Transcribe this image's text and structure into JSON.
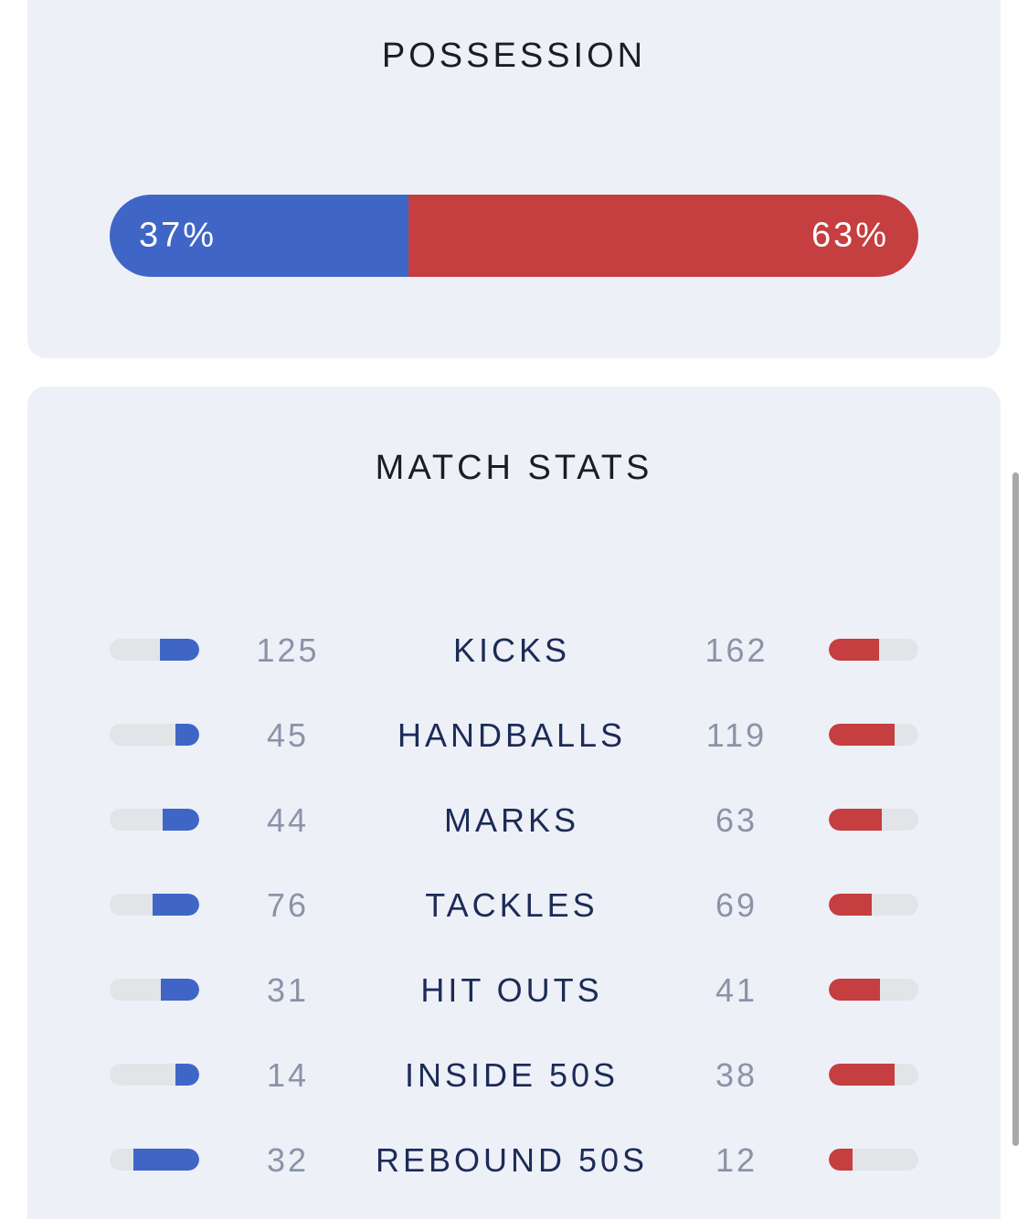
{
  "possession": {
    "title": "POSSESSION",
    "home_label": "37%",
    "away_label": "63%",
    "home_fraction": 0.37,
    "away_fraction": 0.63
  },
  "match_stats": {
    "title": "MATCH STATS",
    "rows": [
      {
        "name": "KICKS",
        "home": "125",
        "away": "162",
        "home_fill": 0.44,
        "away_fill": 0.56
      },
      {
        "name": "HANDBALLS",
        "home": "45",
        "away": "119",
        "home_fill": 0.27,
        "away_fill": 0.73
      },
      {
        "name": "MARKS",
        "home": "44",
        "away": "63",
        "home_fill": 0.41,
        "away_fill": 0.59
      },
      {
        "name": "TACKLES",
        "home": "76",
        "away": "69",
        "home_fill": 0.52,
        "away_fill": 0.48
      },
      {
        "name": "HIT OUTS",
        "home": "31",
        "away": "41",
        "home_fill": 0.43,
        "away_fill": 0.57
      },
      {
        "name": "INSIDE 50S",
        "home": "14",
        "away": "38",
        "home_fill": 0.27,
        "away_fill": 0.73
      },
      {
        "name": "REBOUND 50S",
        "home": "32",
        "away": "12",
        "home_fill": 0.73,
        "away_fill": 0.27
      }
    ]
  },
  "colors": {
    "home": "#3f66c6",
    "away": "#c53e40",
    "card_bg": "#edf0f7",
    "track": "#e3e4e8"
  }
}
